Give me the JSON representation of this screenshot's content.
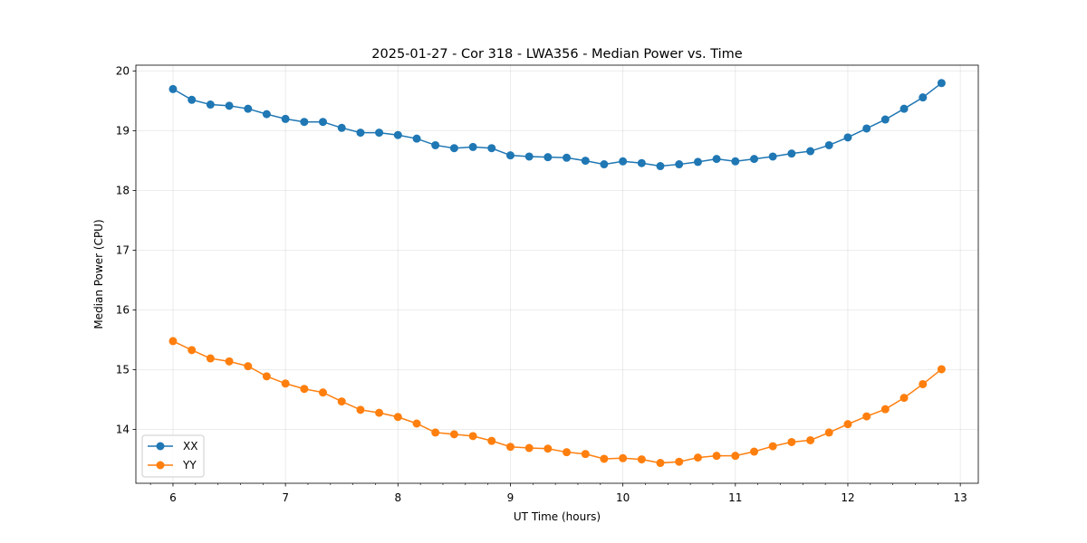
{
  "chart_data": {
    "type": "line",
    "title": "2025-01-27 - Cor 318 - LWA356 - Median Power vs. Time",
    "xlabel": "UT Time (hours)",
    "ylabel": "Median Power (CPU)",
    "xlim": [
      5.67,
      13.16
    ],
    "ylim": [
      13.1,
      20.1
    ],
    "xticks": [
      6,
      7,
      8,
      9,
      10,
      11,
      12,
      13
    ],
    "yticks": [
      14,
      15,
      16,
      17,
      18,
      19,
      20
    ],
    "grid": true,
    "legend_position": "lower-left",
    "x": [
      6.0,
      6.167,
      6.333,
      6.5,
      6.667,
      6.833,
      7.0,
      7.167,
      7.333,
      7.5,
      7.667,
      7.833,
      8.0,
      8.167,
      8.333,
      8.5,
      8.667,
      8.833,
      9.0,
      9.167,
      9.333,
      9.5,
      9.667,
      9.833,
      10.0,
      10.167,
      10.333,
      10.5,
      10.667,
      10.833,
      11.0,
      11.167,
      11.333,
      11.5,
      11.667,
      11.833,
      12.0,
      12.167,
      12.333,
      12.5,
      12.667,
      12.833
    ],
    "series": [
      {
        "name": "XX",
        "color": "#1f77b4",
        "values": [
          19.7,
          19.52,
          19.44,
          19.42,
          19.37,
          19.28,
          19.2,
          19.15,
          19.15,
          19.05,
          18.97,
          18.97,
          18.93,
          18.87,
          18.76,
          18.71,
          18.73,
          18.71,
          18.59,
          18.57,
          18.56,
          18.55,
          18.5,
          18.44,
          18.49,
          18.46,
          18.41,
          18.44,
          18.48,
          18.53,
          18.49,
          18.53,
          18.57,
          18.62,
          18.66,
          18.76,
          18.89,
          19.04,
          19.19,
          19.37,
          19.56,
          19.8
        ]
      },
      {
        "name": "YY",
        "color": "#ff7f0e",
        "values": [
          15.48,
          15.33,
          15.19,
          15.14,
          15.06,
          14.89,
          14.77,
          14.68,
          14.62,
          14.47,
          14.33,
          14.28,
          14.21,
          14.1,
          13.95,
          13.92,
          13.89,
          13.81,
          13.71,
          13.69,
          13.68,
          13.62,
          13.59,
          13.51,
          13.52,
          13.5,
          13.44,
          13.46,
          13.53,
          13.56,
          13.56,
          13.63,
          13.72,
          13.79,
          13.82,
          13.95,
          14.09,
          14.22,
          14.34,
          14.53,
          14.76,
          15.01
        ]
      }
    ]
  }
}
